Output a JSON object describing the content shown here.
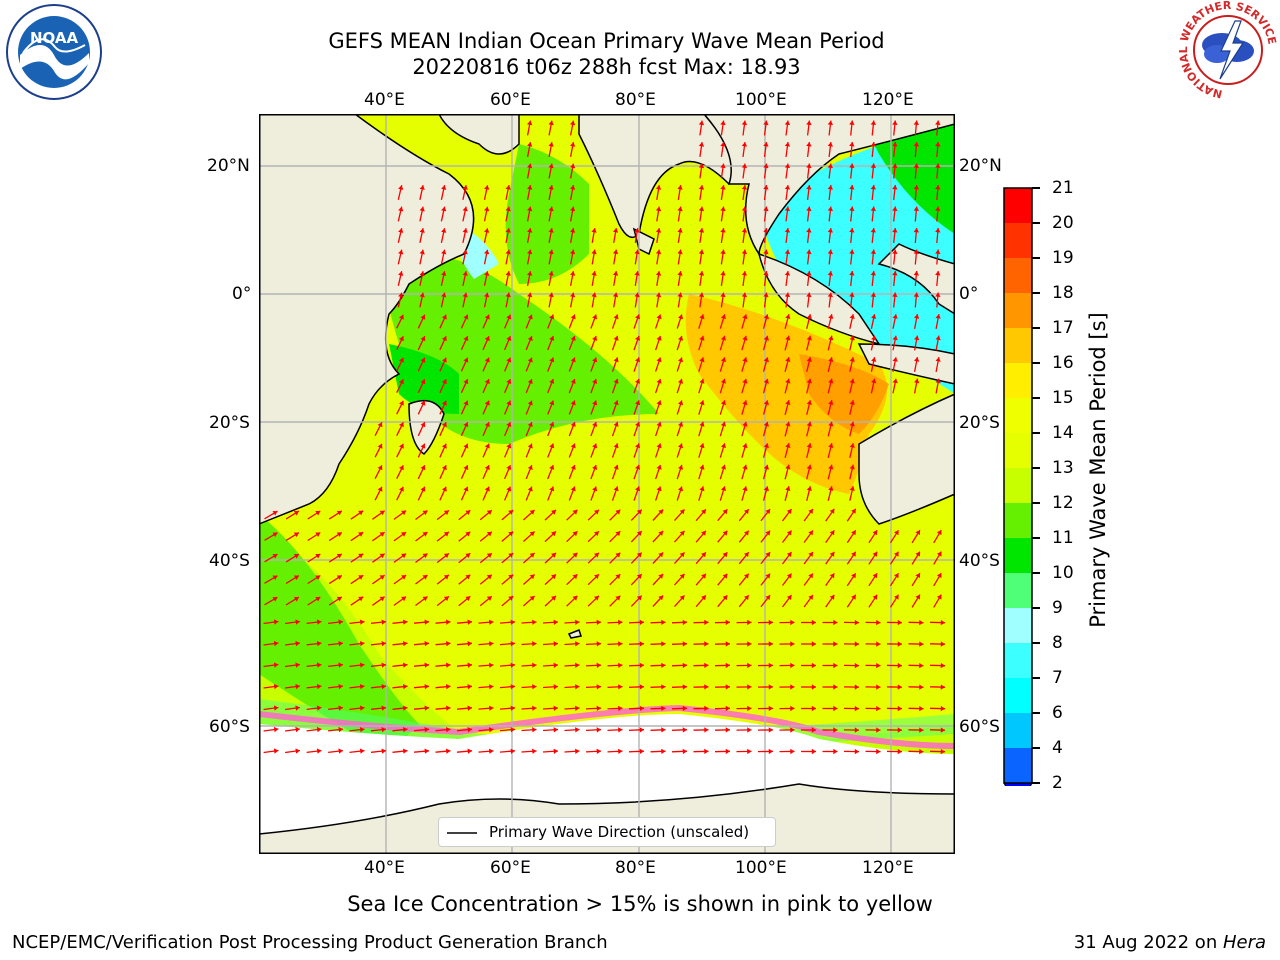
{
  "title": {
    "line1": "GEFS MEAN Indian Ocean Primary Wave Mean Period",
    "line2": "20220816 t06z 288h fcst   Max: 18.93"
  },
  "map": {
    "lon_labels": [
      "40°E",
      "60°E",
      "80°E",
      "100°E",
      "120°E"
    ],
    "lat_labels": [
      "20°N",
      "0°",
      "20°S",
      "40°S",
      "60°S"
    ],
    "legend_label": "Primary Wave Direction (unscaled)",
    "extent": {
      "lon": [
        20,
        130
      ],
      "lat": [
        -76,
        28
      ]
    }
  },
  "colorbar": {
    "label": "Primary Wave Mean Period [s]",
    "ticks": [
      "2",
      "4",
      "6",
      "7",
      "8",
      "9",
      "10",
      "11",
      "12",
      "13",
      "14",
      "15",
      "16",
      "17",
      "18",
      "19",
      "20",
      "21"
    ],
    "colors": [
      "#0a64ff",
      "#00c8ff",
      "#00ffff",
      "#3cffff",
      "#a0ffff",
      "#50ff78",
      "#00e600",
      "#64f000",
      "#c8ff00",
      "#e6ff00",
      "#f0ff00",
      "#ffee00",
      "#ffc800",
      "#ff9600",
      "#ff6400",
      "#ff3200",
      "#ff0000"
    ],
    "underflow_color": "#0000ff"
  },
  "notes": {
    "sea_ice": "Sea Ice Concentration > 15% is shown in pink to yellow"
  },
  "footer": {
    "left": "NCEP/EMC/Verification Post Processing Product Generation Branch",
    "date": "31 Aug 2022 on ",
    "machine": "Hera"
  },
  "logos": {
    "left": "NOAA",
    "right_ring": "NATIONAL WEATHER SERVICE",
    "left_ring": "NATIONAL OCEANIC AND ATMOSPHERIC ADMINISTRATION · U.S. DEPARTMENT OF COMMERCE"
  },
  "colors": {
    "land": "#efeddc",
    "arrow": "#ff0000",
    "grid": "#b3b3b3",
    "ice": "#ffffff"
  }
}
